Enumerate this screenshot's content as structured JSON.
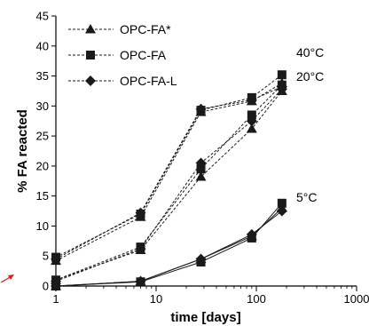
{
  "chart_data": {
    "type": "line",
    "title": "",
    "xlabel": "time [days]",
    "ylabel": "% FA reacted",
    "xscale": "log",
    "xlim": [
      1,
      1000
    ],
    "ylim": [
      0,
      45
    ],
    "xticks": [
      1,
      10,
      100,
      1000
    ],
    "xtick_labels": [
      "1",
      "10",
      "100",
      "1000"
    ],
    "yticks": [
      0,
      5,
      10,
      15,
      20,
      25,
      30,
      35,
      40,
      45
    ],
    "ytick_labels": [
      "0",
      "5",
      "10",
      "15",
      "20",
      "25",
      "30",
      "35",
      "40",
      "45"
    ],
    "grid": false,
    "legend_position": "top-left",
    "legend": [
      {
        "label": "OPC-FA*",
        "marker": "triangle"
      },
      {
        "label": "OPC-FA",
        "marker": "square"
      },
      {
        "label": "OPC-FA-L",
        "marker": "diamond"
      }
    ],
    "annotations": [
      {
        "text": "40°C",
        "x": 300,
        "y": 39
      },
      {
        "text": "20°C",
        "x": 300,
        "y": 35
      },
      {
        "text": "5°C",
        "x": 300,
        "y": 15
      }
    ],
    "x": [
      1,
      7,
      28,
      90,
      180
    ],
    "series": [
      {
        "name": "OPC-FA*",
        "group": "40°C",
        "marker": "triangle",
        "style": "dashed",
        "values": [
          4.2,
          11.5,
          29.0,
          30.8,
          33.8
        ]
      },
      {
        "name": "OPC-FA",
        "group": "40°C",
        "marker": "square",
        "style": "dashed",
        "values": [
          4.8,
          12.0,
          29.3,
          31.4,
          35.2
        ]
      },
      {
        "name": "OPC-FA-L",
        "group": "40°C",
        "marker": "diamond",
        "style": "dashed",
        "values": [
          4.5,
          12.2,
          29.5,
          31.0,
          33.2
        ]
      },
      {
        "name": "OPC-FA*",
        "group": "20°C",
        "marker": "triangle",
        "style": "dashed",
        "values": [
          1.0,
          6.0,
          18.2,
          26.2,
          32.5
        ]
      },
      {
        "name": "OPC-FA",
        "group": "20°C",
        "marker": "square",
        "style": "dashed",
        "values": [
          1.0,
          6.5,
          19.5,
          28.5,
          33.5
        ]
      },
      {
        "name": "OPC-FA-L",
        "group": "20°C",
        "marker": "diamond",
        "style": "dashed",
        "values": [
          0.8,
          6.2,
          20.5,
          27.5,
          32.8
        ]
      },
      {
        "name": "OPC-FA*",
        "group": "5°C",
        "marker": "triangle",
        "style": "solid",
        "values": [
          0,
          0.8,
          4.5,
          8.3,
          13.0
        ]
      },
      {
        "name": "OPC-FA",
        "group": "5°C",
        "marker": "square",
        "style": "solid",
        "values": [
          0,
          0.7,
          4.0,
          8.0,
          13.8
        ]
      },
      {
        "name": "OPC-FA-L",
        "group": "5°C",
        "marker": "diamond",
        "style": "solid",
        "values": [
          0,
          0.8,
          4.5,
          8.6,
          12.5
        ]
      }
    ]
  },
  "colors": {
    "series": "#1a1a1a",
    "axis": "#000000",
    "arrow": "#e0191c"
  }
}
